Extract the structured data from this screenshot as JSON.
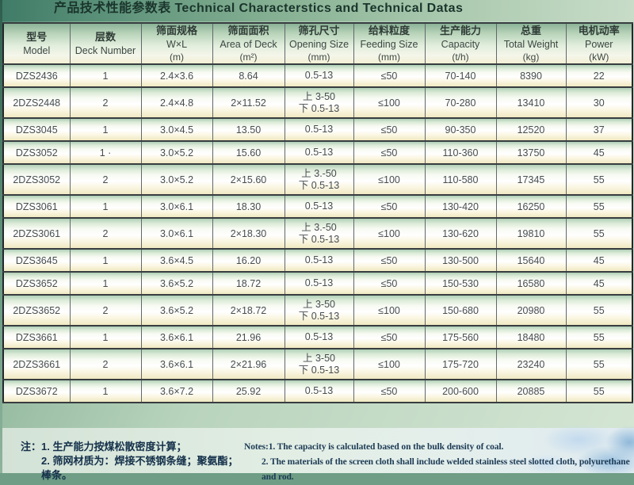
{
  "title": "产品技术性能参数表 Technical Characterstics and Technical Datas",
  "table": {
    "headers": [
      {
        "zh": "型号",
        "en": "Model",
        "unit": ""
      },
      {
        "zh": "层数",
        "en": "Deck Number",
        "unit": ""
      },
      {
        "zh": "筛面规格",
        "en": "W×L",
        "unit": "(m)"
      },
      {
        "zh": "筛面面积",
        "en": "Area of Deck",
        "unit": "(m²)"
      },
      {
        "zh": "筛孔尺寸",
        "en": "Opening Size",
        "unit": "(mm)"
      },
      {
        "zh": "给料粒度",
        "en": "Feeding Size",
        "unit": "(mm)"
      },
      {
        "zh": "生产能力",
        "en": "Capacity",
        "unit": "(t/h)"
      },
      {
        "zh": "总重",
        "en": "Total Weight",
        "unit": "(kg)"
      },
      {
        "zh": "电机动率",
        "en": "Power",
        "unit": "(kW)"
      }
    ],
    "rows": [
      [
        "DZS2436",
        "1",
        "2.4×3.6",
        "8.64",
        "0.5-13",
        "≤50",
        "70-140",
        "8390",
        "22"
      ],
      [
        "2DZS2448",
        "2",
        "2.4×4.8",
        "2×11.52",
        "上 3-50\n下 0.5-13",
        "≤100",
        "70-280",
        "13410",
        "30"
      ],
      [
        "DZS3045",
        "1",
        "3.0×4.5",
        "13.50",
        "0.5-13",
        "≤50",
        "90-350",
        "12520",
        "37"
      ],
      [
        "DZS3052",
        "1 ·",
        "3.0×5.2",
        "15.60",
        "0.5-13",
        "≤50",
        "110-360",
        "13750",
        "45"
      ],
      [
        "2DZS3052",
        "2",
        "3.0×5.2",
        "2×15.60",
        "上 3.-50\n下 0.5-13",
        "≤100",
        "110-580",
        "17345",
        "55"
      ],
      [
        "DZS3061",
        "1",
        "3.0×6.1",
        "18.30",
        "0.5-13",
        "≤50",
        "130-420",
        "16250",
        "55"
      ],
      [
        "2DZS3061",
        "2",
        "3.0×6.1",
        "2×18.30",
        "上 3.-50\n下 0.5-13",
        "≤100",
        "130-620",
        "19810",
        "55"
      ],
      [
        "DZS3645",
        "1",
        "3.6×4.5",
        "16.20",
        "0.5-13",
        "≤50",
        "130-500",
        "15640",
        "45"
      ],
      [
        "DZS3652",
        "1",
        "3.6×5.2",
        "18.72",
        "0.5-13",
        "≤50",
        "150-530",
        "16580",
        "45"
      ],
      [
        "2DZS3652",
        "2",
        "3.6×5.2",
        "2×18.72",
        "上 3-50\n下 0.5-13",
        "≤100",
        "150-680",
        "20980",
        "55"
      ],
      [
        "DZS3661",
        "1",
        "3.6×6.1",
        "21.96",
        "0.5-13",
        "≤50",
        "175-560",
        "18480",
        "55"
      ],
      [
        "2DZS3661",
        "2",
        "3.6×6.1",
        "2×21.96",
        "上 3-50\n下 0.5-13",
        "≤100",
        "175-720",
        "23240",
        "55"
      ],
      [
        "DZS3672",
        "1",
        "3.6×7.2",
        "25.92",
        "0.5-13",
        "≤50",
        "200-600",
        "20885",
        "55"
      ]
    ]
  },
  "notes": {
    "zh_line1": "注：1. 生产能力按煤松散密度计算；",
    "zh_line2": "2. 筛网材质为：焊接不锈钢条缝；聚氨酯；棒条。",
    "en_line1": "Notes:1. The capacity is calculated based on the bulk density of coal.",
    "en_line2": "2. The materials of the screen cloth shall include welded stainless steel slotted cloth, polyurethane and rod."
  },
  "palette": {
    "band_green_dark": "#3f7b67",
    "band_green_light": "#c8dcc8",
    "row_green_top": "#afcfb6",
    "row_cream_bottom": "#f0e9c2",
    "watermark_blue": "#9cc2e0"
  }
}
